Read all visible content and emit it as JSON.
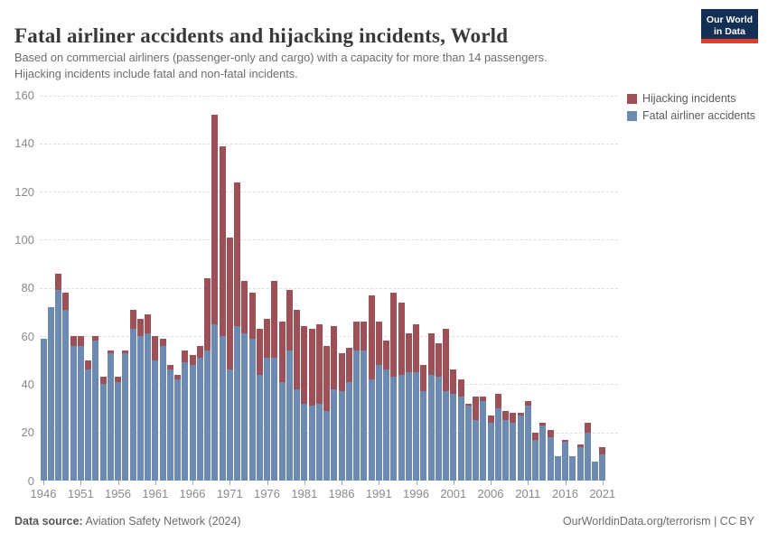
{
  "header": {
    "title": "Fatal airliner accidents and hijacking incidents, World",
    "subtitle_line1": "Based on commercial airliners (passenger-only and cargo) with a capacity for more than 14 passengers.",
    "subtitle_line2": "Hijacking incidents include fatal and non-fatal incidents.",
    "logo_line1": "Our World",
    "logo_line2": "in Data"
  },
  "legend": [
    {
      "label": "Hijacking incidents",
      "color": "#9d5058"
    },
    {
      "label": "Fatal airliner accidents",
      "color": "#6d8bb2"
    }
  ],
  "chart_data": {
    "type": "bar",
    "stacked": true,
    "title": "Fatal airliner accidents and hijacking incidents, World",
    "xlabel": "",
    "ylabel": "",
    "ylim": [
      0,
      160
    ],
    "yticks": [
      0,
      20,
      40,
      60,
      80,
      100,
      120,
      140,
      160
    ],
    "xticks": [
      1946,
      1951,
      1956,
      1961,
      1966,
      1971,
      1976,
      1981,
      1986,
      1991,
      1996,
      2001,
      2006,
      2011,
      2016,
      2021
    ],
    "grid": "horizontal-dashed",
    "legend_position": "right-top",
    "x": [
      1946,
      1947,
      1948,
      1949,
      1950,
      1951,
      1952,
      1953,
      1954,
      1955,
      1956,
      1957,
      1958,
      1959,
      1960,
      1961,
      1962,
      1963,
      1964,
      1965,
      1966,
      1967,
      1968,
      1969,
      1970,
      1971,
      1972,
      1973,
      1974,
      1975,
      1976,
      1977,
      1978,
      1979,
      1980,
      1981,
      1982,
      1983,
      1984,
      1985,
      1986,
      1987,
      1988,
      1989,
      1990,
      1991,
      1992,
      1993,
      1994,
      1995,
      1996,
      1997,
      1998,
      1999,
      2000,
      2001,
      2002,
      2003,
      2004,
      2005,
      2006,
      2007,
      2008,
      2009,
      2010,
      2011,
      2012,
      2013,
      2014,
      2015,
      2016,
      2017,
      2018,
      2019,
      2020,
      2021
    ],
    "series": [
      {
        "name": "Fatal airliner accidents",
        "color": "#6d8bb2",
        "values": [
          59,
          72,
          79,
          71,
          56,
          56,
          46,
          58,
          40,
          53,
          41,
          53,
          63,
          60,
          61,
          50,
          56,
          46,
          42,
          49,
          48,
          51,
          54,
          65,
          60,
          46,
          64,
          61,
          59,
          44,
          51,
          51,
          41,
          54,
          38,
          32,
          31,
          32,
          29,
          38,
          37,
          41,
          54,
          54,
          42,
          48,
          46,
          43,
          44,
          45,
          45,
          37,
          44,
          43,
          37,
          36,
          35,
          31,
          25,
          33,
          24,
          30,
          25,
          24,
          27,
          31,
          17,
          23,
          18,
          10,
          16,
          10,
          14,
          20,
          8,
          11
        ]
      },
      {
        "name": "Hijacking incidents",
        "color": "#9d5058",
        "values": [
          0,
          0,
          7,
          7,
          4,
          4,
          4,
          2,
          3,
          1,
          2,
          1,
          8,
          7,
          8,
          10,
          3,
          2,
          2,
          5,
          4,
          5,
          30,
          87,
          79,
          55,
          60,
          22,
          19,
          19,
          16,
          32,
          25,
          25,
          33,
          32,
          32,
          33,
          27,
          26,
          16,
          14,
          12,
          12,
          35,
          18,
          12,
          35,
          30,
          16,
          20,
          11,
          17,
          14,
          26,
          10,
          7,
          1,
          10,
          2,
          3,
          6,
          4,
          4,
          1,
          2,
          3,
          1,
          3,
          0,
          1,
          0,
          1,
          4,
          0,
          3
        ]
      }
    ]
  },
  "footer": {
    "source_label": "Data source:",
    "source_value": " Aviation Safety Network (2024)",
    "right_text": "OurWorldinData.org/terrorism | CC BY"
  }
}
